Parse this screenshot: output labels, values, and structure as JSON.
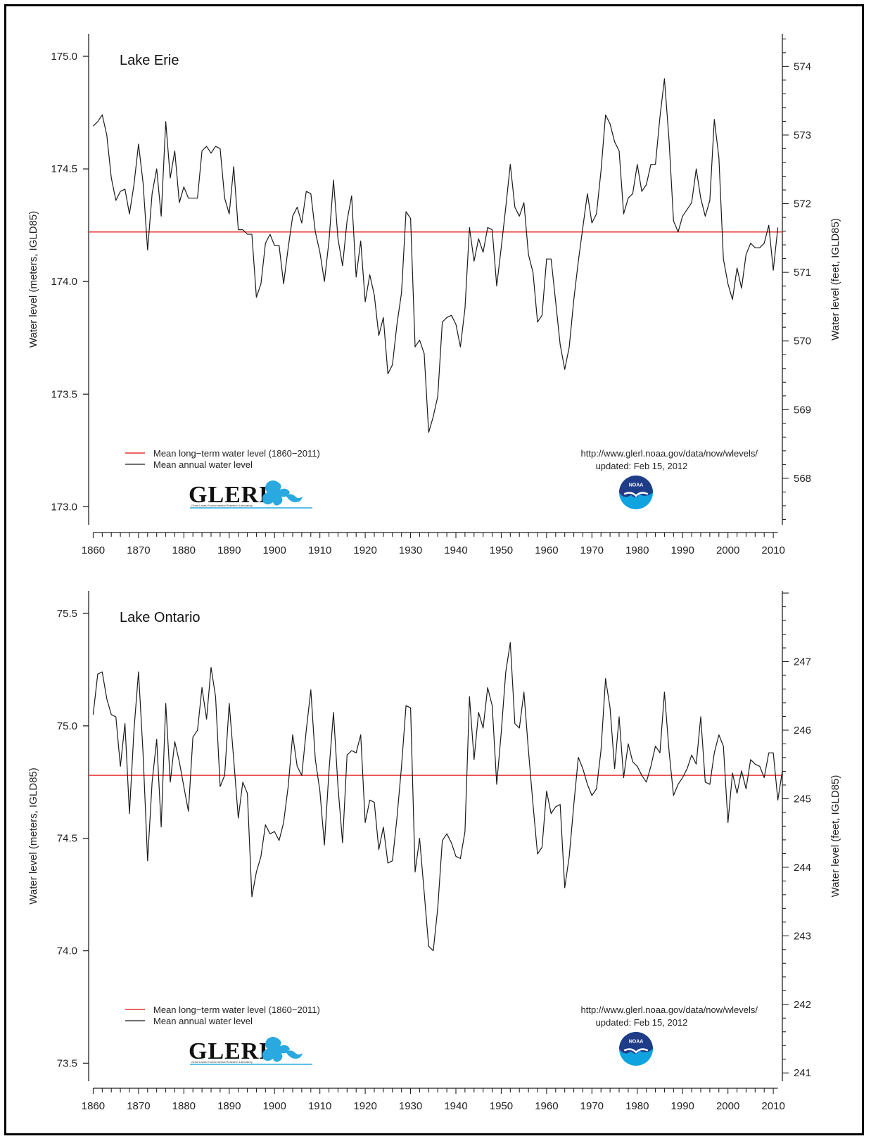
{
  "colors": {
    "mean_line": "#e8322f",
    "annual_line": "#1a1a1a",
    "noaa_dark": "#1f3c88",
    "noaa_light": "#0fa3e0",
    "glerl_blue": "#29a9e0"
  },
  "icons": {
    "glerl_logo": "glerl-logo",
    "noaa_logo": "noaa-logo"
  },
  "chart_data": [
    {
      "type": "line",
      "title": "Lake Erie",
      "ylabel": "Water level (meters, IGLD85)",
      "y2label": "Water level (feet, IGLD85)",
      "ylim": [
        172.92,
        175.1
      ],
      "yticks": [
        173.0,
        173.5,
        174.0,
        174.5,
        175.0
      ],
      "ytick_labels": [
        "173.0",
        "173.5",
        "174.0",
        "174.5",
        "175.0"
      ],
      "y2ticks": [
        568,
        569,
        570,
        571,
        572,
        573,
        574
      ],
      "y2tick_labels": [
        "568",
        "569",
        "570",
        "571",
        "572",
        "573",
        "574"
      ],
      "xlim": [
        1859,
        2012
      ],
      "xticks": [
        1860,
        1870,
        1880,
        1890,
        1900,
        1910,
        1920,
        1930,
        1940,
        1950,
        1960,
        1970,
        1980,
        1990,
        2000,
        2010
      ],
      "xtick_labels": [
        "1860",
        "1870",
        "1880",
        "1890",
        "1900",
        "1910",
        "1920",
        "1930",
        "1940",
        "1950",
        "1960",
        "1970",
        "1980",
        "1990",
        "2000",
        "2010"
      ],
      "mean_level": 174.22,
      "legend": [
        "Mean long−term water level (1860−2011)",
        "Mean annual water level"
      ],
      "source": [
        "http://www.glerl.noaa.gov/data/now/wlevels/",
        "updated: Feb 15, 2012"
      ],
      "logo_text": "GLERL",
      "logo_subtext": "Great Lakes Environmental Research Laboratory",
      "noaa_label": "NOAA",
      "series": [
        {
          "name": "Mean annual water level",
          "x_start": 1860,
          "values": [
            174.69,
            174.71,
            174.74,
            174.65,
            174.46,
            174.36,
            174.4,
            174.41,
            174.3,
            174.43,
            174.61,
            174.44,
            174.14,
            174.39,
            174.5,
            174.29,
            174.71,
            174.46,
            174.58,
            174.35,
            174.42,
            174.37,
            174.37,
            174.37,
            174.58,
            174.6,
            174.57,
            174.6,
            174.59,
            174.37,
            174.3,
            174.51,
            174.23,
            174.23,
            174.21,
            174.21,
            173.93,
            173.99,
            174.17,
            174.21,
            174.16,
            174.16,
            173.99,
            174.15,
            174.29,
            174.33,
            174.26,
            174.4,
            174.39,
            174.22,
            174.13,
            174.0,
            174.18,
            174.45,
            174.19,
            174.07,
            174.27,
            174.38,
            174.02,
            174.18,
            173.91,
            174.03,
            173.94,
            173.76,
            173.84,
            173.59,
            173.63,
            173.81,
            173.95,
            174.31,
            174.28,
            173.71,
            173.74,
            173.68,
            173.33,
            173.4,
            173.49,
            173.82,
            173.84,
            173.85,
            173.81,
            173.71,
            173.88,
            174.24,
            174.09,
            174.19,
            174.13,
            174.24,
            174.23,
            173.98,
            174.15,
            174.33,
            174.52,
            174.33,
            174.29,
            174.35,
            174.12,
            174.04,
            173.82,
            173.85,
            174.1,
            174.1,
            173.91,
            173.72,
            173.61,
            173.71,
            173.92,
            174.09,
            174.24,
            174.39,
            174.26,
            174.3,
            174.49,
            174.74,
            174.7,
            174.62,
            174.58,
            174.3,
            174.37,
            174.39,
            174.52,
            174.4,
            174.43,
            174.52,
            174.52,
            174.73,
            174.9,
            174.63,
            174.27,
            174.22,
            174.29,
            174.32,
            174.35,
            174.5,
            174.37,
            174.29,
            174.36,
            174.72,
            174.55,
            174.1,
            173.99,
            173.92,
            174.06,
            173.97,
            174.12,
            174.17,
            174.15,
            174.15,
            174.17,
            174.25,
            174.05,
            174.24
          ]
        }
      ]
    },
    {
      "type": "line",
      "title": "Lake Ontario",
      "ylabel": "Water level (meters, IGLD85)",
      "y2label": "Water level (feet, IGLD85)",
      "ylim": [
        73.42,
        75.6
      ],
      "yticks": [
        73.5,
        74.0,
        74.5,
        75.0,
        75.5
      ],
      "ytick_labels": [
        "73.5",
        "74.0",
        "74.5",
        "75.0",
        "75.5"
      ],
      "y2ticks": [
        241,
        242,
        243,
        244,
        245,
        246,
        247
      ],
      "y2tick_labels": [
        "241",
        "242",
        "243",
        "244",
        "245",
        "246",
        "247"
      ],
      "xlim": [
        1859,
        2012
      ],
      "xticks": [
        1860,
        1870,
        1880,
        1890,
        1900,
        1910,
        1920,
        1930,
        1940,
        1950,
        1960,
        1970,
        1980,
        1990,
        2000,
        2010
      ],
      "xtick_labels": [
        "1860",
        "1870",
        "1880",
        "1890",
        "1900",
        "1910",
        "1920",
        "1930",
        "1940",
        "1950",
        "1960",
        "1970",
        "1980",
        "1990",
        "2000",
        "2010"
      ],
      "mean_level": 74.78,
      "legend": [
        "Mean long−term water level (1860−2011)",
        "Mean annual water level"
      ],
      "source": [
        "http://www.glerl.noaa.gov/data/now/wlevels/",
        "updated: Feb 15, 2012"
      ],
      "logo_text": "GLERL",
      "logo_subtext": "Great Lakes Environmental Research Laboratory",
      "noaa_label": "NOAA",
      "series": [
        {
          "name": "Mean annual water level",
          "x_start": 1860,
          "values": [
            75.05,
            75.23,
            75.24,
            75.12,
            75.05,
            75.04,
            74.82,
            75.01,
            74.61,
            74.98,
            75.24,
            74.88,
            74.4,
            74.75,
            74.94,
            74.55,
            75.1,
            74.75,
            74.93,
            74.84,
            74.73,
            74.62,
            74.95,
            74.98,
            75.17,
            75.03,
            75.26,
            75.13,
            74.73,
            74.78,
            75.1,
            74.85,
            74.59,
            74.75,
            74.7,
            74.24,
            74.35,
            74.42,
            74.56,
            74.52,
            74.53,
            74.49,
            74.57,
            74.73,
            74.96,
            74.82,
            74.78,
            74.98,
            75.16,
            74.85,
            74.71,
            74.47,
            74.8,
            75.06,
            74.73,
            74.48,
            74.87,
            74.89,
            74.88,
            74.96,
            74.57,
            74.67,
            74.66,
            74.45,
            74.55,
            74.39,
            74.4,
            74.59,
            74.82,
            75.09,
            75.08,
            74.35,
            74.5,
            74.26,
            74.02,
            74.0,
            74.19,
            74.49,
            74.52,
            74.48,
            74.42,
            74.41,
            74.53,
            75.13,
            74.85,
            75.06,
            74.99,
            75.17,
            75.09,
            74.74,
            74.97,
            75.24,
            75.37,
            75.01,
            74.99,
            75.15,
            74.89,
            74.65,
            74.43,
            74.46,
            74.71,
            74.61,
            74.64,
            74.65,
            74.28,
            74.42,
            74.65,
            74.86,
            74.81,
            74.74,
            74.69,
            74.72,
            74.89,
            75.21,
            75.08,
            74.81,
            75.04,
            74.77,
            74.92,
            74.84,
            74.82,
            74.78,
            74.75,
            74.82,
            74.91,
            74.88,
            75.15,
            74.89,
            74.69,
            74.74,
            74.77,
            74.81,
            74.87,
            74.83,
            75.04,
            74.75,
            74.74,
            74.88,
            74.96,
            74.91,
            74.57,
            74.79,
            74.7,
            74.8,
            74.72,
            74.85,
            74.83,
            74.82,
            74.77,
            74.88,
            74.88,
            74.67,
            74.8
          ]
        }
      ]
    }
  ]
}
